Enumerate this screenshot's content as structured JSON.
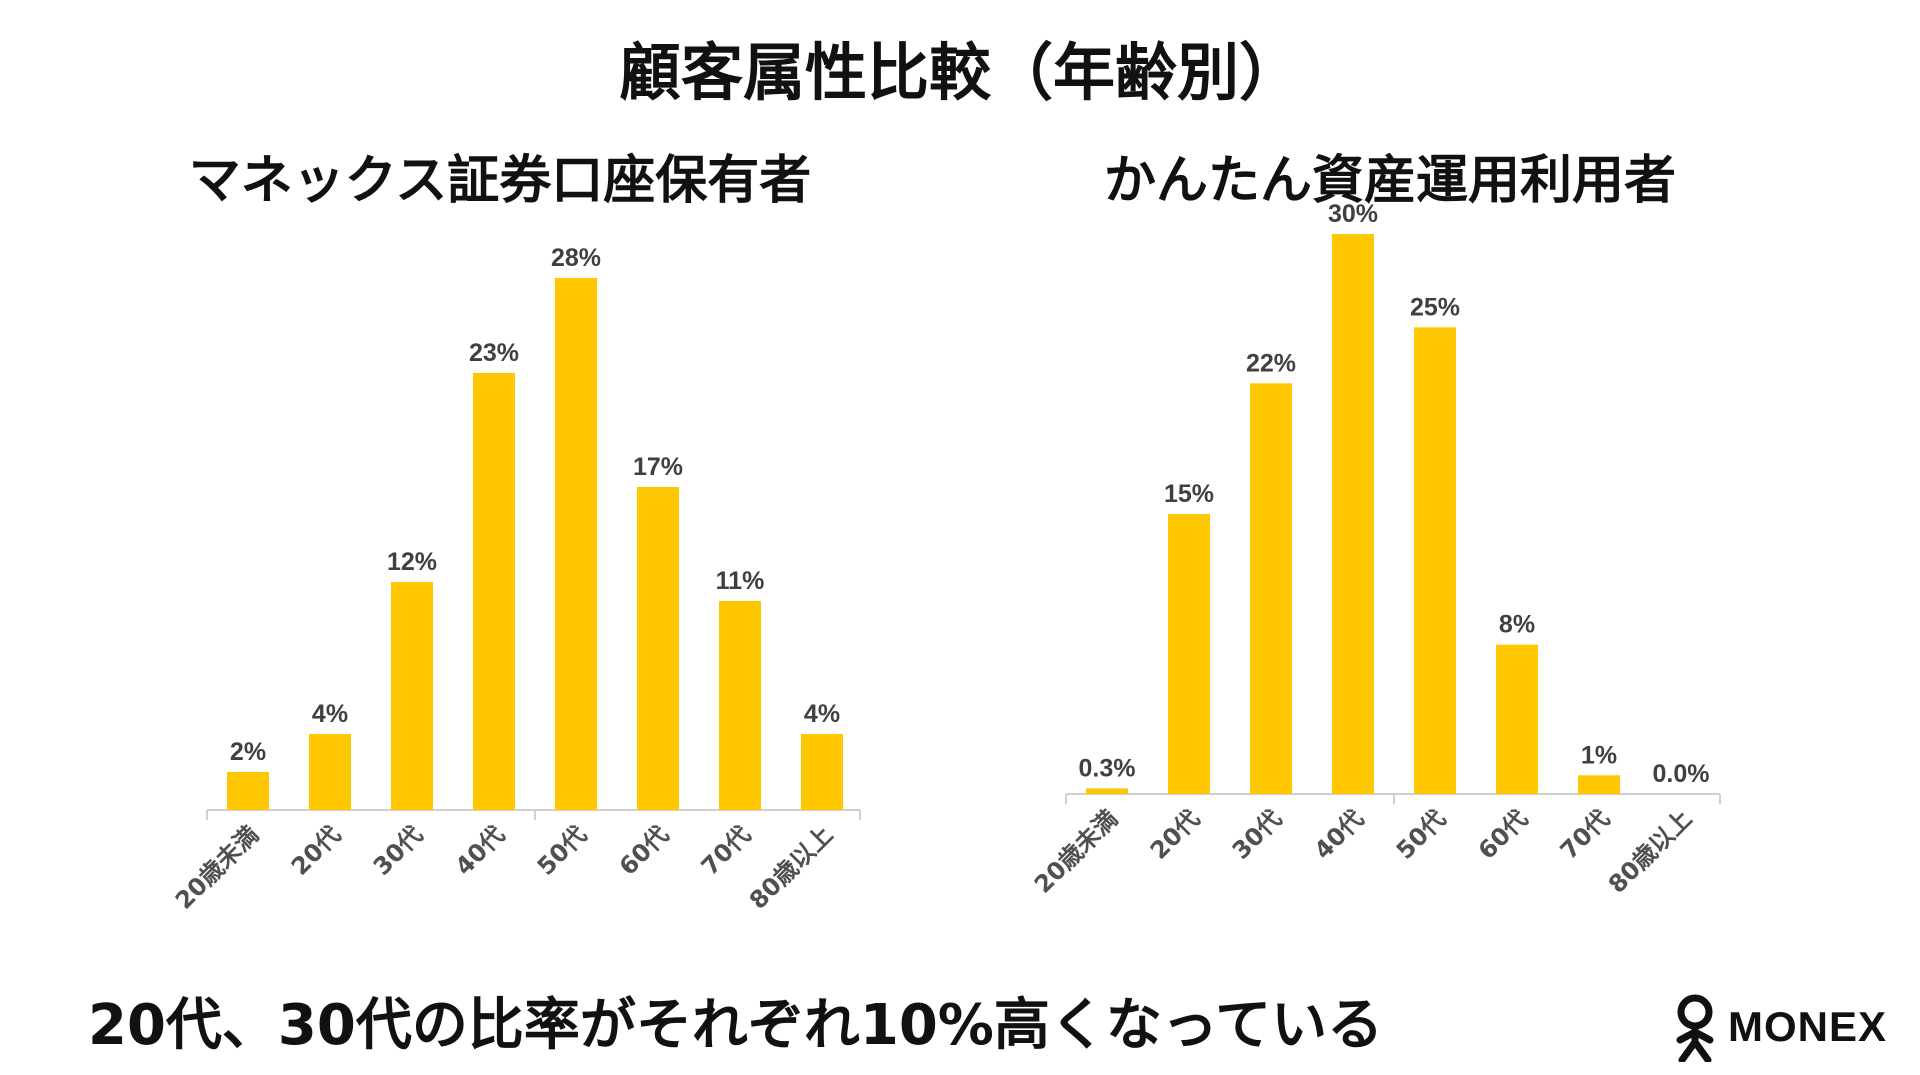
{
  "page": {
    "title": "顧客属性比較（年齢別）",
    "footer": "20代、30代の比率がそれぞれ10%高くなっている",
    "logo_text": "MONEX"
  },
  "colors": {
    "bar": "#FFC700",
    "text": "#111111",
    "label": "#404040"
  },
  "chart_data": [
    {
      "type": "bar",
      "title": "マネックス証券口座保有者",
      "categories": [
        "20歳未満",
        "20代",
        "30代",
        "40代",
        "50代",
        "60代",
        "70代",
        "80歳以上"
      ],
      "values": [
        2,
        4,
        12,
        23,
        28,
        17,
        11,
        4
      ],
      "value_labels": [
        "2%",
        "4%",
        "12%",
        "23%",
        "28%",
        "17%",
        "11%",
        "4%"
      ],
      "ylim": [
        0,
        30
      ],
      "grid": false,
      "legend": "none"
    },
    {
      "type": "bar",
      "title": "かんたん資産運用利用者",
      "categories": [
        "20歳未満",
        "20代",
        "30代",
        "40代",
        "50代",
        "60代",
        "70代",
        "80歳以上"
      ],
      "values": [
        0.3,
        15,
        22,
        30,
        25,
        8,
        1,
        0.0
      ],
      "value_labels": [
        "0.3%",
        "15%",
        "22%",
        "30%",
        "25%",
        "8%",
        "1%",
        "0.0%"
      ],
      "ylim": [
        0,
        30
      ],
      "grid": false,
      "legend": "none"
    }
  ]
}
